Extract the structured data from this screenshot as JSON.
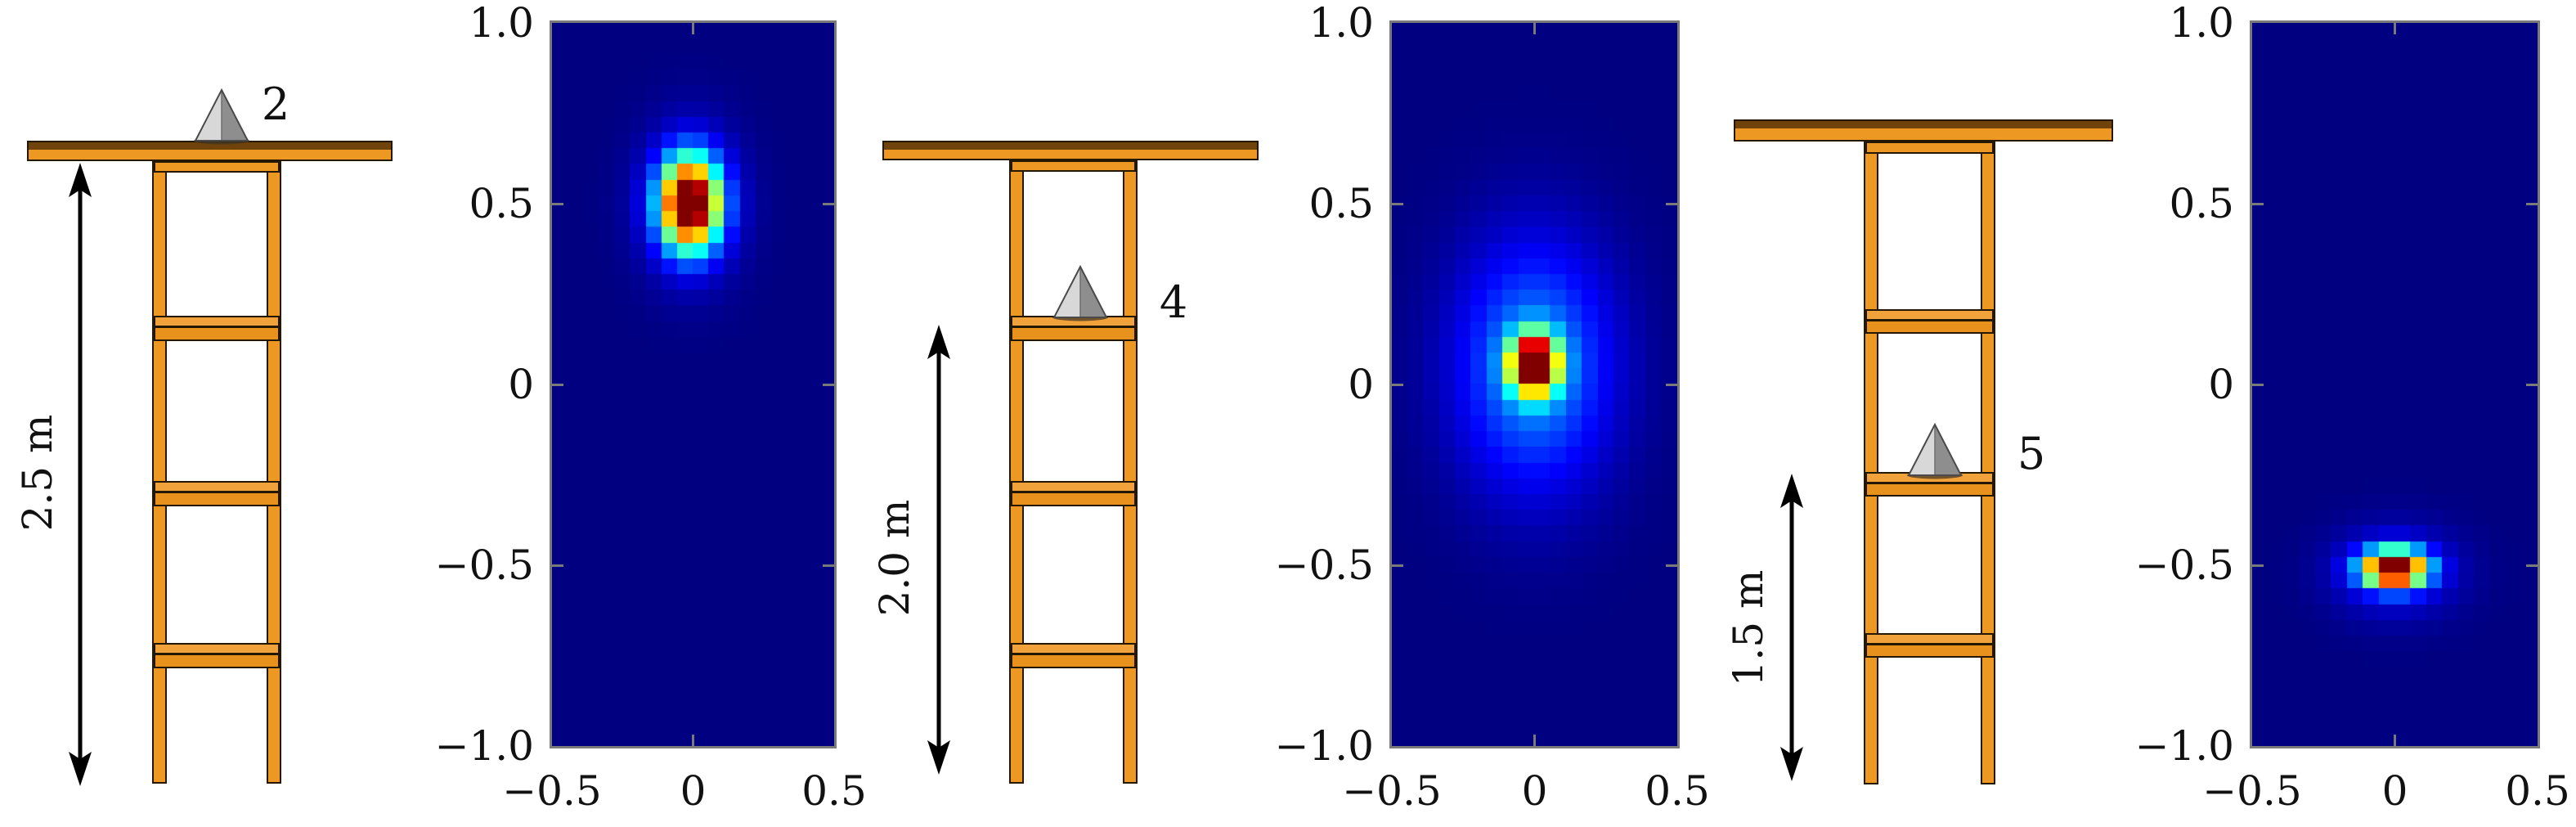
{
  "panels": [
    {
      "cone_label": "2",
      "height_label": "2.5 m"
    },
    {
      "cone_label": "4",
      "height_label": "2.0 m"
    },
    {
      "cone_label": "5",
      "height_label": "1.5 m"
    }
  ],
  "chart_data": [
    {
      "type": "heatmap",
      "title": "",
      "xlabel": "",
      "ylabel": "",
      "xlim": [
        -0.5,
        0.5
      ],
      "ylim": [
        -1.0,
        1.0
      ],
      "x_tick_values": [
        -0.5,
        0,
        0.5
      ],
      "x_tick_labels": [
        "−0.5",
        "0",
        "0.5"
      ],
      "y_tick_values": [
        1.0,
        0.5,
        0,
        -0.5,
        -1.0
      ],
      "y_tick_labels": [
        "1.0",
        "0.5",
        "0",
        "−0.5",
        "−1.0"
      ],
      "colormap": "jet",
      "background_color": "#000080",
      "grid_cells": [
        18,
        46
      ],
      "peak": {
        "x": -0.01,
        "y": 0.5
      },
      "blobs": [
        {
          "cx": -0.01,
          "cy": 0.5,
          "sx": 0.072,
          "sy": 0.085,
          "amp": 1.05
        },
        {
          "cx": -0.01,
          "cy": 0.5,
          "sx": 0.12,
          "sy": 0.145,
          "amp": 0.16
        }
      ]
    },
    {
      "type": "heatmap",
      "title": "",
      "xlabel": "",
      "ylabel": "",
      "xlim": [
        -0.5,
        0.5
      ],
      "ylim": [
        -1.0,
        1.0
      ],
      "x_tick_values": [
        -0.5,
        0,
        0.5
      ],
      "x_tick_labels": [
        "−0.5",
        "0",
        "0.5"
      ],
      "y_tick_values": [
        1.0,
        0.5,
        0,
        -0.5,
        -1.0
      ],
      "y_tick_labels": [
        "1.0",
        "0.5",
        "0",
        "−0.5",
        "−1.0"
      ],
      "colormap": "jet",
      "background_color": "#000080",
      "grid_cells": [
        18,
        46
      ],
      "peak": {
        "x": 0.0,
        "y": 0.06
      },
      "blobs": [
        {
          "cx": 0.0,
          "cy": 0.055,
          "sx": 0.055,
          "sy": 0.055,
          "amp": 1.15
        },
        {
          "cx": 0.0,
          "cy": 0.05,
          "sx": 0.19,
          "sy": 0.24,
          "amp": 0.28
        }
      ]
    },
    {
      "type": "heatmap",
      "title": "",
      "xlabel": "",
      "ylabel": "",
      "xlim": [
        -0.5,
        0.5
      ],
      "ylim": [
        -1.0,
        1.0
      ],
      "x_tick_values": [
        -0.5,
        0,
        0.5
      ],
      "x_tick_labels": [
        "−0.5",
        "0",
        "0.5"
      ],
      "y_tick_values": [
        1.0,
        0.5,
        0,
        -0.5,
        -1.0
      ],
      "y_tick_labels": [
        "1.0",
        "0.5",
        "0",
        "−0.5",
        "−1.0"
      ],
      "colormap": "jet",
      "background_color": "#000080",
      "grid_cells": [
        18,
        46
      ],
      "peak": {
        "x": 0.0,
        "y": -0.52
      },
      "blobs": [
        {
          "cx": 0.0,
          "cy": -0.51,
          "sx": 0.075,
          "sy": 0.035,
          "amp": 1.1
        },
        {
          "cx": 0.0,
          "cy": -0.52,
          "sx": 0.15,
          "sy": 0.085,
          "amp": 0.14
        }
      ]
    }
  ]
}
